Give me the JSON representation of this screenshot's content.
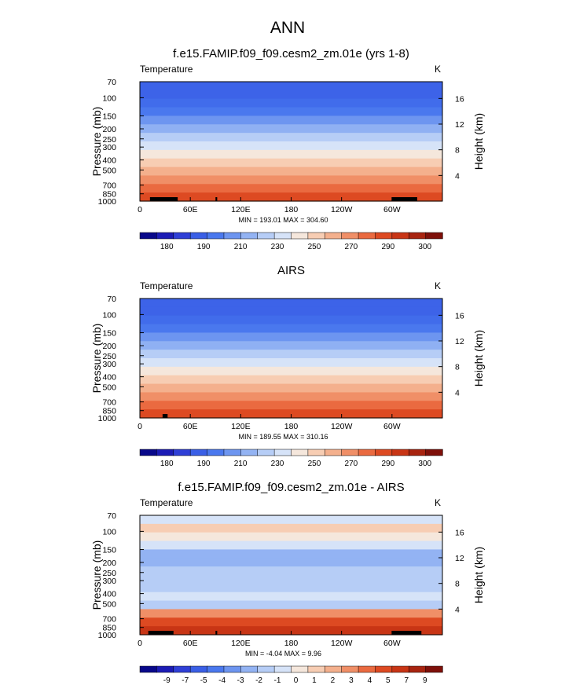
{
  "suptitle": "ANN",
  "colors": {
    "temp_scale": [
      "#08088a",
      "#1c1cb5",
      "#2f3fd6",
      "#3a5fe6",
      "#4a78ee",
      "#6d95f0",
      "#93b3f3",
      "#b6cdf6",
      "#d6e3f8",
      "#f5e7dc",
      "#f7cdb3",
      "#f4b08d",
      "#f08f67",
      "#ea6a40",
      "#dd4a22",
      "#c83515",
      "#a82410",
      "#7e100a"
    ],
    "diff_scale": [
      "#08088a",
      "#1c1cb5",
      "#2f3fd6",
      "#3a5fe6",
      "#4a78ee",
      "#6d95f0",
      "#93b3f3",
      "#b6cdf6",
      "#d6e3f8",
      "#f5e7dc",
      "#f7cdb3",
      "#f4b08d",
      "#f08f67",
      "#ea6a40",
      "#dd4a22",
      "#c83515",
      "#a82410",
      "#7e100a"
    ],
    "topography": "#000000"
  },
  "chart_data": [
    {
      "type": "heatmap",
      "title": "f.e15.FAMIP.f09_f09.cesm2_zm.01e (yrs 1-8)",
      "left_label": "Temperature",
      "right_label": "K",
      "ylabel": "Pressure (mb)",
      "y2label": "Height (km)",
      "xticks": [
        "0",
        "60E",
        "120E",
        "180",
        "120W",
        "60W"
      ],
      "xtick_values": [
        0,
        60,
        120,
        180,
        240,
        300
      ],
      "xlim": [
        0,
        360
      ],
      "yticks": [
        "70",
        "100",
        "150",
        "200",
        "250",
        "300",
        "400",
        "500",
        "700",
        "850",
        "1000"
      ],
      "ytick_values": [
        70,
        100,
        150,
        200,
        250,
        300,
        400,
        500,
        700,
        850,
        1000
      ],
      "ylim": [
        1000,
        70
      ],
      "y2ticks": [
        "4",
        "8",
        "12",
        "16"
      ],
      "y2tick_values": [
        4,
        8,
        12,
        16
      ],
      "stats": "MIN = 193.01  MAX = 304.60",
      "min": 193.01,
      "max": 304.6,
      "colorbar_labels": [
        "180",
        "190",
        "210",
        "230",
        "250",
        "270",
        "290",
        "300"
      ],
      "colorbar_levels": [
        180,
        185,
        190,
        200,
        210,
        220,
        230,
        240,
        250,
        260,
        270,
        280,
        285,
        290,
        295,
        300,
        305
      ],
      "band_colors": [
        "#3d63e8",
        "#3d63e8",
        "#416ceb",
        "#4a78ee",
        "#6d95f0",
        "#8fb0f3",
        "#b6cdf6",
        "#d6e3f8",
        "#f5e7dc",
        "#f7cdb3",
        "#f4b08d",
        "#f08f67",
        "#ea6a40",
        "#dd4a22"
      ],
      "topo_bars": [
        [
          12,
          30
        ],
        [
          25,
          40
        ],
        [
          35,
          45
        ],
        [
          300,
          330
        ],
        [
          90,
          92
        ]
      ]
    },
    {
      "type": "heatmap",
      "title": "AIRS",
      "left_label": "Temperature",
      "right_label": "K",
      "ylabel": "Pressure (mb)",
      "y2label": "Height (km)",
      "xticks": [
        "0",
        "60E",
        "120E",
        "180",
        "120W",
        "60W"
      ],
      "xtick_values": [
        0,
        60,
        120,
        180,
        240,
        300
      ],
      "xlim": [
        0,
        360
      ],
      "yticks": [
        "70",
        "100",
        "150",
        "200",
        "250",
        "300",
        "400",
        "500",
        "700",
        "850",
        "1000"
      ],
      "ytick_values": [
        70,
        100,
        150,
        200,
        250,
        300,
        400,
        500,
        700,
        850,
        1000
      ],
      "ylim": [
        1000,
        70
      ],
      "y2ticks": [
        "4",
        "8",
        "12",
        "16"
      ],
      "y2tick_values": [
        4,
        8,
        12,
        16
      ],
      "stats": "MIN = 189.55  MAX = 310.16",
      "min": 189.55,
      "max": 310.16,
      "colorbar_labels": [
        "180",
        "190",
        "210",
        "230",
        "250",
        "270",
        "290",
        "300"
      ],
      "colorbar_levels": [
        180,
        185,
        190,
        200,
        210,
        220,
        230,
        240,
        250,
        260,
        270,
        280,
        285,
        290,
        295,
        300,
        305
      ],
      "band_colors": [
        "#3d63e8",
        "#3d63e8",
        "#416ceb",
        "#4a78ee",
        "#6d95f0",
        "#8fb0f3",
        "#b6cdf6",
        "#d6e3f8",
        "#f5e7dc",
        "#f7cdb3",
        "#f4b08d",
        "#f08f67",
        "#ea6a40",
        "#dd4a22"
      ],
      "topo_bars": [
        [
          27,
          33
        ]
      ]
    },
    {
      "type": "heatmap",
      "title": "f.e15.FAMIP.f09_f09.cesm2_zm.01e - AIRS",
      "left_label": "Temperature",
      "right_label": "K",
      "ylabel": "Pressure (mb)",
      "y2label": "Height (km)",
      "xticks": [
        "0",
        "60E",
        "120E",
        "180",
        "120W",
        "60W"
      ],
      "xtick_values": [
        0,
        60,
        120,
        180,
        240,
        300
      ],
      "xlim": [
        0,
        360
      ],
      "yticks": [
        "70",
        "100",
        "150",
        "200",
        "250",
        "300",
        "400",
        "500",
        "700",
        "850",
        "1000"
      ],
      "ytick_values": [
        70,
        100,
        150,
        200,
        250,
        300,
        400,
        500,
        700,
        850,
        1000
      ],
      "ylim": [
        1000,
        70
      ],
      "y2ticks": [
        "4",
        "8",
        "12",
        "16"
      ],
      "y2tick_values": [
        4,
        8,
        12,
        16
      ],
      "stats": "MIN = -4.04  MAX = 9.96",
      "min": -4.04,
      "max": 9.96,
      "colorbar_labels": [
        "-9",
        "-7",
        "-5",
        "-4",
        "-3",
        "-2",
        "-1",
        "0",
        "1",
        "2",
        "3",
        "4",
        "5",
        "7",
        "9"
      ],
      "colorbar_levels": [
        -9,
        -8,
        -7,
        -6,
        -5,
        -4,
        -3,
        -2,
        -1,
        0,
        1,
        2,
        3,
        4,
        5,
        6,
        7,
        9
      ],
      "band_colors": [
        "#d6e3f8",
        "#f7cdb3",
        "#f5e7dc",
        "#d6e3f8",
        "#93b3f3",
        "#93b3f3",
        "#b6cdf6",
        "#b6cdf6",
        "#b6cdf6",
        "#d6e3f8",
        "#b6cdf6",
        "#f08f67",
        "#dd4a22",
        "#c83515"
      ],
      "topo_bars": [
        [
          10,
          30
        ],
        [
          25,
          40
        ],
        [
          300,
          335
        ],
        [
          90,
          92
        ]
      ]
    }
  ]
}
